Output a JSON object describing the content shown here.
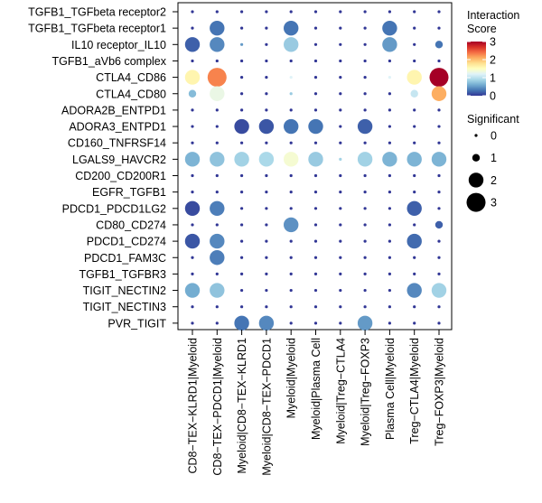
{
  "chart_data": {
    "type": "dotplot",
    "title": "",
    "rows": [
      "TGFB1_TGFbeta receptor2",
      "TGFB1_TGFbeta receptor1",
      "IL10 receptor_IL10",
      "TGFB1_aVb6 complex",
      "CTLA4_CD86",
      "CTLA4_CD80",
      "ADORA2B_ENTPD1",
      "ADORA3_ENTPD1",
      "CD160_TNFRSF14",
      "LGALS9_HAVCR2",
      "CD200_CD200R1",
      "EGFR_TGFB1",
      "PDCD1_PDCD1LG2",
      "CD80_CD274",
      "PDCD1_CD274",
      "PDCD1_FAM3C",
      "TGFB1_TGFBR3",
      "TIGIT_NECTIN2",
      "TIGIT_NECTIN3",
      "PVR_TIGIT"
    ],
    "columns": [
      "CD8−TEX−KLRD1|Myeloid",
      "CD8−TEX−PDCD1|Myeloid",
      "Myeloid|CD8−TEX−KLRD1",
      "Myeloid|CD8−TEX−PDCD1",
      "Myeloid|Myeloid",
      "Myeloid|Plasma Cell",
      "Myeloid|Treg−CTLA4",
      "Myeloid|Treg−FOXP3",
      "Plasma Cell|Myeloid",
      "Treg−CTLA4|Myeloid",
      "Treg−FOXP3|Myeloid"
    ],
    "score": [
      [
        0,
        0,
        0,
        0,
        0,
        0,
        0,
        0,
        0,
        0,
        0
      ],
      [
        0,
        0.3,
        0,
        0,
        0.3,
        0,
        0,
        0,
        0.3,
        0,
        0
      ],
      [
        0.2,
        0.4,
        0.5,
        0,
        0.8,
        0,
        0,
        0,
        0.5,
        0,
        0.3
      ],
      [
        0,
        0,
        0,
        0,
        0,
        0,
        0,
        0,
        0,
        0,
        0
      ],
      [
        1.6,
        2.3,
        0,
        0,
        1.2,
        0,
        0,
        0,
        1.2,
        1.6,
        3
      ],
      [
        0.7,
        1.3,
        0,
        0,
        0.8,
        0,
        0,
        0,
        0,
        1.05,
        2.1
      ],
      [
        0,
        0,
        0,
        0,
        0,
        0,
        0,
        0,
        0,
        0,
        0
      ],
      [
        0,
        0,
        0.1,
        0.15,
        0.3,
        0.3,
        0,
        0.2,
        0,
        0,
        0
      ],
      [
        0,
        0,
        0,
        0,
        0,
        0,
        0,
        0,
        0,
        0,
        0
      ],
      [
        0.65,
        0.75,
        0.85,
        0.9,
        1.4,
        0.8,
        0.85,
        0.85,
        0.65,
        0.65,
        0.65
      ],
      [
        0,
        0,
        0,
        0,
        0,
        0,
        0,
        0,
        0,
        0,
        0
      ],
      [
        0,
        0,
        0,
        0,
        0,
        0,
        0,
        0,
        0,
        0,
        0
      ],
      [
        0.1,
        0.35,
        0,
        0,
        0,
        0,
        0,
        0,
        0,
        0.2,
        0
      ],
      [
        0,
        0,
        0,
        0,
        0.45,
        0,
        0,
        0,
        0,
        0,
        0.2
      ],
      [
        0.15,
        0.4,
        0,
        0,
        0,
        0,
        0,
        0,
        0,
        0.25,
        0
      ],
      [
        0,
        0.35,
        0,
        0,
        0,
        0,
        0,
        0,
        0,
        0,
        0
      ],
      [
        0,
        0,
        0,
        0,
        0,
        0,
        0,
        0,
        0,
        0,
        0
      ],
      [
        0.6,
        0.75,
        0,
        0,
        0,
        0,
        0,
        0,
        0,
        0.4,
        0.85
      ],
      [
        0,
        0,
        0,
        0,
        0,
        0,
        0,
        0,
        0,
        0,
        0
      ],
      [
        0,
        0,
        0.3,
        0.4,
        0,
        0,
        0,
        0.5,
        0,
        0,
        0
      ]
    ],
    "significant": [
      [
        0,
        0,
        0,
        0,
        0,
        0,
        0,
        0,
        0,
        0,
        0
      ],
      [
        0,
        2,
        0,
        0,
        2,
        0,
        0,
        0,
        2,
        0,
        0
      ],
      [
        2,
        2,
        0,
        0,
        2,
        0,
        0,
        0,
        2,
        0,
        1
      ],
      [
        0,
        0,
        0,
        0,
        0,
        0,
        0,
        0,
        0,
        0,
        0
      ],
      [
        2,
        3,
        0,
        0,
        0,
        0,
        0,
        0,
        0,
        2,
        3
      ],
      [
        1,
        2,
        0,
        0,
        0,
        0,
        0,
        0,
        0,
        1,
        2
      ],
      [
        0,
        0,
        0,
        0,
        0,
        0,
        0,
        0,
        0,
        0,
        0
      ],
      [
        0,
        0,
        2,
        2,
        2,
        2,
        0,
        2,
        0,
        0,
        0
      ],
      [
        0,
        0,
        0,
        0,
        0,
        0,
        0,
        0,
        0,
        0,
        0
      ],
      [
        2,
        2,
        2,
        2,
        2,
        2,
        0,
        2,
        2,
        2,
        2
      ],
      [
        0,
        0,
        0,
        0,
        0,
        0,
        0,
        0,
        0,
        0,
        0
      ],
      [
        0,
        0,
        0,
        0,
        0,
        0,
        0,
        0,
        0,
        0,
        0
      ],
      [
        2,
        2,
        0,
        0,
        0,
        0,
        0,
        0,
        0,
        2,
        0
      ],
      [
        0,
        0,
        0,
        0,
        2,
        0,
        0,
        0,
        0,
        0,
        1
      ],
      [
        2,
        2,
        0,
        0,
        0,
        0,
        0,
        0,
        0,
        2,
        0
      ],
      [
        0,
        2,
        0,
        0,
        0,
        0,
        0,
        0,
        0,
        0,
        0
      ],
      [
        0,
        0,
        0,
        0,
        0,
        0,
        0,
        0,
        0,
        0,
        0
      ],
      [
        2,
        2,
        0,
        0,
        0,
        0,
        0,
        0,
        0,
        2,
        2
      ],
      [
        0,
        0,
        0,
        0,
        0,
        0,
        0,
        0,
        0,
        0,
        0
      ],
      [
        0,
        0,
        2,
        2,
        0,
        0,
        0,
        2,
        0,
        0,
        0
      ]
    ],
    "color_legend": {
      "title": "Interaction Score",
      "title_lines": [
        "Interaction",
        "Score"
      ],
      "range": [
        0,
        3
      ],
      "ticks": [
        3,
        2,
        1,
        0
      ],
      "stops": [
        "#313695",
        "#4575b4",
        "#74add1",
        "#abd9e9",
        "#e0f3f8",
        "#ffffbf",
        "#fee090",
        "#fdae61",
        "#f46d43",
        "#d73027",
        "#a50026"
      ]
    },
    "size_legend": {
      "title": "Significant",
      "levels": [
        0,
        1,
        2,
        3
      ]
    },
    "grid": false
  }
}
